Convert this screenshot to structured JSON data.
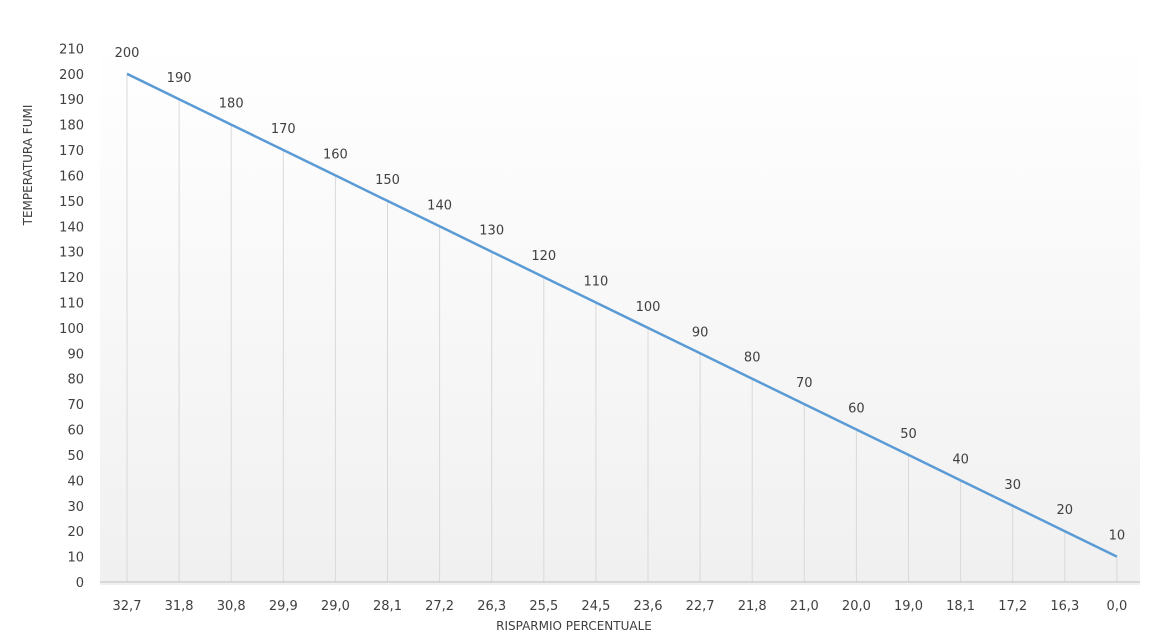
{
  "chart_data": {
    "type": "line",
    "title": "",
    "xlabel": "RISPARMIO PERCENTUALE",
    "ylabel": "TEMPERATURA FUMI",
    "categories": [
      "32,7",
      "31,8",
      "30,8",
      "29,9",
      "29,0",
      "28,1",
      "27,2",
      "26,3",
      "25,5",
      "24,5",
      "23,6",
      "22,7",
      "21,8",
      "21,0",
      "20,0",
      "19,0",
      "18,1",
      "17,2",
      "16,3",
      "0,0"
    ],
    "series": [
      {
        "values": [
          200,
          190,
          180,
          170,
          160,
          150,
          140,
          130,
          120,
          110,
          100,
          90,
          80,
          70,
          60,
          50,
          40,
          30,
          20,
          10
        ],
        "color": "#5b9bd5"
      }
    ],
    "data_labels": [
      "200",
      "190",
      "180",
      "170",
      "160",
      "150",
      "140",
      "130",
      "120",
      "110",
      "100",
      "90",
      "80",
      "70",
      "60",
      "50",
      "40",
      "30",
      "20",
      "10"
    ],
    "y_ticks": [
      "0",
      "10",
      "20",
      "30",
      "40",
      "50",
      "60",
      "70",
      "80",
      "90",
      "100",
      "110",
      "120",
      "130",
      "140",
      "150",
      "160",
      "170",
      "180",
      "190",
      "200",
      "210"
    ],
    "ylim": [
      0,
      210
    ],
    "grid": "vertical drop lines",
    "legend": "none",
    "colors": {
      "line": "#5b9bd5",
      "drop_lines": "#d9d9d9",
      "axis": "#bfbfbf",
      "text": "#404040",
      "background_gradient_top": "#ffffff",
      "background_gradient_bottom": "#f0f0f0"
    }
  }
}
